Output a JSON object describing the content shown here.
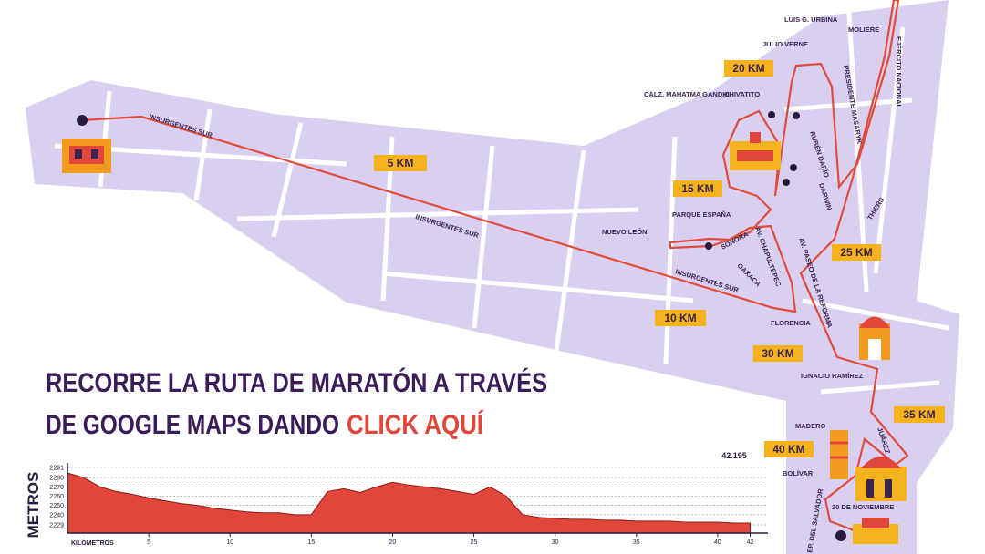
{
  "headline": {
    "line1": "RECORRE LA RUTA DE MARATÓN A TRAVÉS",
    "line2": "DE GOOGLE MAPS DANDO",
    "link": "CLICK AQUÍ"
  },
  "map": {
    "km_markers": [
      "5 KM",
      "10 KM",
      "15 KM",
      "20 KM",
      "25 KM",
      "30 KM",
      "35 KM",
      "40 KM"
    ],
    "streets": [
      "INSURGENTES SUR",
      "INSURGENTES SUR",
      "INSURGENTES SUR",
      "LUIS G. URBINA",
      "JULIO VERNE",
      "MOLIERE",
      "EJÉRCITO NACIONAL",
      "PRESIDENTE MASARYK",
      "CHIVATITO",
      "CALZ. MAHATMA GANDHI",
      "RUBÉN DARÍO",
      "DARWIN",
      "THIERS",
      "PARQUE ESPAÑA",
      "NUEVO LEÓN",
      "SONORA",
      "AV. CHAPULTEPEC",
      "OAXACA",
      "AV. PASEO DE LA REFORMA",
      "FLORENCIA",
      "IGNACIO RAMÍREZ",
      "MADERO",
      "JUÁREZ",
      "BOLÍVAR",
      "20 DE NOVIEMBRE",
      "EP. DEL SALVADOR"
    ]
  },
  "chart_data": {
    "type": "area",
    "y_label": "METROS",
    "x_label": "KILÓMETROS",
    "x": [
      0,
      1,
      2,
      3,
      4,
      5,
      6,
      7,
      8,
      9,
      10,
      11,
      12,
      13,
      14,
      15,
      16,
      17,
      18,
      19,
      20,
      21,
      22,
      23,
      24,
      25,
      26,
      27,
      28,
      29,
      30,
      31,
      32,
      33,
      34,
      35,
      36,
      37,
      38,
      39,
      40,
      41,
      42
    ],
    "values": [
      2285,
      2280,
      2270,
      2265,
      2262,
      2258,
      2255,
      2252,
      2250,
      2247,
      2245,
      2243,
      2242,
      2242,
      2240,
      2240,
      2265,
      2268,
      2264,
      2270,
      2275,
      2272,
      2270,
      2268,
      2265,
      2262,
      2270,
      2260,
      2240,
      2237,
      2236,
      2235,
      2235,
      2234,
      2234,
      2233,
      2233,
      2233,
      2232,
      2232,
      2232,
      2231,
      2231
    ],
    "color": "#e0463a",
    "xlim": [
      0,
      42.195
    ],
    "ylim": [
      2229,
      2291
    ],
    "xticks": [
      5,
      10,
      15,
      20,
      25,
      30,
      35,
      40,
      42
    ],
    "yticks": [
      2291,
      2280,
      2270,
      2260,
      2250,
      2240,
      2229
    ],
    "grid": true
  }
}
